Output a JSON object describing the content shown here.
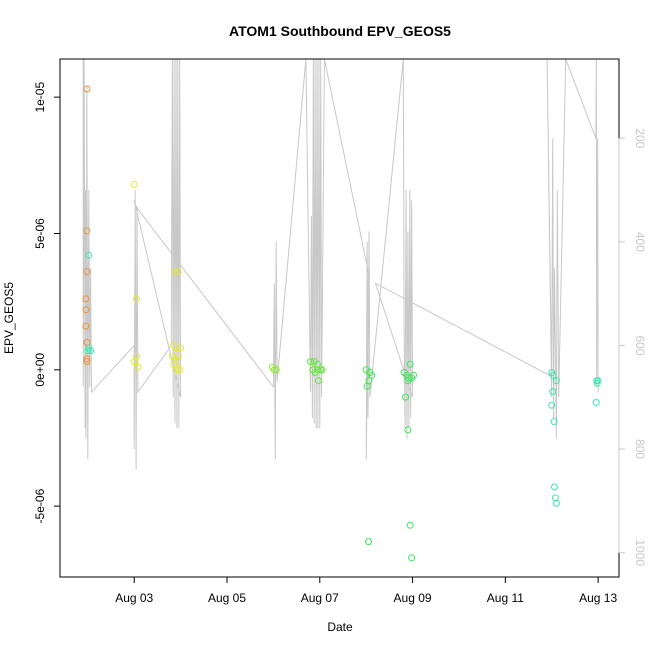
{
  "chart_data": {
    "type": "scatter",
    "title": "ATOM1 Southbound EPV_GEOS5",
    "xlabel": "Date",
    "ylabel": "EPV_GEOS5",
    "x_ticks": [
      "Aug 03",
      "Aug 05",
      "Aug 07",
      "Aug 09",
      "Aug 11",
      "Aug 13"
    ],
    "x_tick_days": [
      3,
      5,
      7,
      9,
      11,
      13
    ],
    "y_ticks": [
      "-5e-06",
      "0e+00",
      "5e-06",
      "1e-05"
    ],
    "y_tick_values": [
      -5e-06,
      0,
      5e-06,
      1e-05
    ],
    "y2_ticks": [
      "200",
      "400",
      "600",
      "800",
      "1000"
    ],
    "y2_tick_values": [
      200,
      400,
      600,
      800,
      1000
    ],
    "x_range_days": [
      1.4,
      13.45
    ],
    "ylim": [
      -7.6e-06,
      1.14e-05
    ],
    "y2lim": [
      1047,
      47
    ],
    "y2_reversed": true,
    "grid": false,
    "legend": "none",
    "colors": {
      "trajectory": "#c8c8c8",
      "axis": "#000000",
      "y2_axis": "#c8c8c8",
      "points_by_day": {
        "1": "#e8923a",
        "3": "#e5e83a",
        "4": "#e5e83a",
        "6": "#8fe83a",
        "7": "#62e83a",
        "8": "#3ae84a",
        "9": "#3ae859",
        "12": "#3ae8a9",
        "13": "#3ae8b9"
      }
    },
    "points": [
      {
        "x": 1.98,
        "y": 1.03e-05
      },
      {
        "x": 1.98,
        "y": 5.1e-06
      },
      {
        "x": 2.02,
        "y": 4.2e-06
      },
      {
        "x": 1.98,
        "y": 3.6e-06
      },
      {
        "x": 1.96,
        "y": 2.6e-06
      },
      {
        "x": 1.96,
        "y": 2.2e-06
      },
      {
        "x": 1.96,
        "y": 1.6e-06
      },
      {
        "x": 1.98,
        "y": 1e-06
      },
      {
        "x": 2.02,
        "y": 8e-07
      },
      {
        "x": 2.06,
        "y": 7e-07
      },
      {
        "x": 2.0,
        "y": 7e-07
      },
      {
        "x": 1.98,
        "y": 4e-07
      },
      {
        "x": 1.98,
        "y": 3e-07
      },
      {
        "x": 3.0,
        "y": 6.8e-06
      },
      {
        "x": 3.05,
        "y": 2.6e-06
      },
      {
        "x": 3.05,
        "y": 5e-07
      },
      {
        "x": 3.0,
        "y": 3e-07
      },
      {
        "x": 3.08,
        "y": 1e-07
      },
      {
        "x": 3.88,
        "y": 3.6e-06
      },
      {
        "x": 3.95,
        "y": 3.6e-06
      },
      {
        "x": 3.85,
        "y": 9e-07
      },
      {
        "x": 3.9,
        "y": 8e-07
      },
      {
        "x": 4.0,
        "y": 8e-07
      },
      {
        "x": 3.82,
        "y": 5e-07
      },
      {
        "x": 3.88,
        "y": 4e-07
      },
      {
        "x": 3.95,
        "y": 5e-07
      },
      {
        "x": 3.85,
        "y": 2e-07
      },
      {
        "x": 3.93,
        "y": 1e-07
      },
      {
        "x": 3.98,
        "y": 0.0
      },
      {
        "x": 3.9,
        "y": 0.0
      },
      {
        "x": 5.98,
        "y": 1e-07
      },
      {
        "x": 6.02,
        "y": 0.0
      },
      {
        "x": 6.06,
        "y": 0.0
      },
      {
        "x": 6.8,
        "y": 3e-07
      },
      {
        "x": 6.88,
        "y": 3e-07
      },
      {
        "x": 6.95,
        "y": 2e-07
      },
      {
        "x": 6.85,
        "y": 0.0
      },
      {
        "x": 6.9,
        "y": -1e-07
      },
      {
        "x": 6.96,
        "y": 0.0
      },
      {
        "x": 7.02,
        "y": 0.0
      },
      {
        "x": 7.05,
        "y": 0.0
      },
      {
        "x": 6.97,
        "y": -4e-07
      },
      {
        "x": 8.0,
        "y": 0.0
      },
      {
        "x": 8.08,
        "y": -1e-07
      },
      {
        "x": 8.12,
        "y": -2e-07
      },
      {
        "x": 8.06,
        "y": -4e-07
      },
      {
        "x": 8.02,
        "y": -6e-07
      },
      {
        "x": 8.05,
        "y": -6.3e-06
      },
      {
        "x": 8.82,
        "y": -1e-07
      },
      {
        "x": 8.87,
        "y": -2e-07
      },
      {
        "x": 8.92,
        "y": -3e-07
      },
      {
        "x": 8.98,
        "y": -3e-07
      },
      {
        "x": 9.02,
        "y": -2e-07
      },
      {
        "x": 8.95,
        "y": 2e-07
      },
      {
        "x": 8.9,
        "y": -4e-07
      },
      {
        "x": 8.85,
        "y": -1e-06
      },
      {
        "x": 8.9,
        "y": -2.2e-06
      },
      {
        "x": 8.95,
        "y": -5.7e-06
      },
      {
        "x": 8.98,
        "y": -6.9e-06
      },
      {
        "x": 12.0,
        "y": -1e-07
      },
      {
        "x": 12.03,
        "y": -2e-07
      },
      {
        "x": 12.1,
        "y": -4e-07
      },
      {
        "x": 12.02,
        "y": -8e-07
      },
      {
        "x": 12.0,
        "y": -1.3e-06
      },
      {
        "x": 12.05,
        "y": -1.9e-06
      },
      {
        "x": 12.06,
        "y": -4.3e-06
      },
      {
        "x": 12.08,
        "y": -4.7e-06
      },
      {
        "x": 12.1,
        "y": -4.9e-06
      },
      {
        "x": 12.97,
        "y": -4e-07
      },
      {
        "x": 13.0,
        "y": -4e-07
      },
      {
        "x": 12.98,
        "y": -5e-07
      },
      {
        "x": 12.96,
        "y": -1.2e-06
      }
    ],
    "trajectory_pressure": [
      {
        "x": 1.9,
        "p": 47
      },
      {
        "x": 1.9,
        "p": 680
      },
      {
        "x": 1.92,
        "p": 40
      },
      {
        "x": 1.94,
        "p": 760
      },
      {
        "x": 1.95,
        "p": 300
      },
      {
        "x": 1.96,
        "p": 780
      },
      {
        "x": 1.98,
        "p": 100
      },
      {
        "x": 2.0,
        "p": 820
      },
      {
        "x": 2.02,
        "p": 300
      },
      {
        "x": 2.04,
        "p": 680
      },
      {
        "x": 2.06,
        "p": 450
      },
      {
        "x": 2.08,
        "p": 690
      },
      {
        "x": 3.0,
        "p": 600
      },
      {
        "x": 3.0,
        "p": 800
      },
      {
        "x": 3.02,
        "p": 300
      },
      {
        "x": 3.04,
        "p": 840
      },
      {
        "x": 3.06,
        "p": 330
      },
      {
        "x": 3.08,
        "p": 690
      },
      {
        "x": 3.8,
        "p": 600
      },
      {
        "x": 3.82,
        "p": 47
      },
      {
        "x": 3.84,
        "p": 700
      },
      {
        "x": 3.86,
        "p": 47
      },
      {
        "x": 3.88,
        "p": 750
      },
      {
        "x": 3.9,
        "p": 47
      },
      {
        "x": 3.92,
        "p": 760
      },
      {
        "x": 3.94,
        "p": 47
      },
      {
        "x": 3.96,
        "p": 760
      },
      {
        "x": 3.98,
        "p": 47
      },
      {
        "x": 4.0,
        "p": 700
      },
      {
        "x": 3.0,
        "p": 320
      },
      {
        "x": 3.02,
        "p": 330
      },
      {
        "x": 6.0,
        "p": 680
      },
      {
        "x": 6.02,
        "p": 480
      },
      {
        "x": 6.04,
        "p": 820
      },
      {
        "x": 6.06,
        "p": 400
      },
      {
        "x": 6.08,
        "p": 670
      },
      {
        "x": 6.7,
        "p": 47
      },
      {
        "x": 6.8,
        "p": 690
      },
      {
        "x": 6.82,
        "p": 350
      },
      {
        "x": 6.84,
        "p": 740
      },
      {
        "x": 6.86,
        "p": 47
      },
      {
        "x": 6.88,
        "p": 750
      },
      {
        "x": 6.9,
        "p": 47
      },
      {
        "x": 6.92,
        "p": 760
      },
      {
        "x": 6.94,
        "p": 47
      },
      {
        "x": 6.96,
        "p": 760
      },
      {
        "x": 6.98,
        "p": 47
      },
      {
        "x": 7.0,
        "p": 760
      },
      {
        "x": 7.02,
        "p": 47
      },
      {
        "x": 7.04,
        "p": 700
      },
      {
        "x": 7.1,
        "p": 47
      },
      {
        "x": 8.05,
        "p": 460
      },
      {
        "x": 8.0,
        "p": 820
      },
      {
        "x": 8.02,
        "p": 400
      },
      {
        "x": 8.04,
        "p": 740
      },
      {
        "x": 8.06,
        "p": 380
      },
      {
        "x": 8.08,
        "p": 700
      },
      {
        "x": 8.8,
        "p": 47
      },
      {
        "x": 8.82,
        "p": 600
      },
      {
        "x": 8.84,
        "p": 760
      },
      {
        "x": 8.86,
        "p": 300
      },
      {
        "x": 8.88,
        "p": 780
      },
      {
        "x": 8.9,
        "p": 380
      },
      {
        "x": 8.92,
        "p": 760
      },
      {
        "x": 8.94,
        "p": 300
      },
      {
        "x": 8.96,
        "p": 740
      },
      {
        "x": 8.98,
        "p": 320
      },
      {
        "x": 9.0,
        "p": 700
      },
      {
        "x": 8.2,
        "p": 480
      },
      {
        "x": 12.0,
        "p": 660
      },
      {
        "x": 11.9,
        "p": 47
      },
      {
        "x": 12.0,
        "p": 700
      },
      {
        "x": 12.02,
        "p": 200
      },
      {
        "x": 12.04,
        "p": 740
      },
      {
        "x": 12.06,
        "p": 450
      },
      {
        "x": 12.1,
        "p": 780
      },
      {
        "x": 12.12,
        "p": 300
      },
      {
        "x": 12.15,
        "p": 700
      },
      {
        "x": 12.3,
        "p": 47
      },
      {
        "x": 12.95,
        "p": 200
      },
      {
        "x": 12.96,
        "p": 47
      },
      {
        "x": 12.97,
        "p": 680
      },
      {
        "x": 12.99,
        "p": 200
      },
      {
        "x": 13.0,
        "p": 690
      }
    ]
  }
}
